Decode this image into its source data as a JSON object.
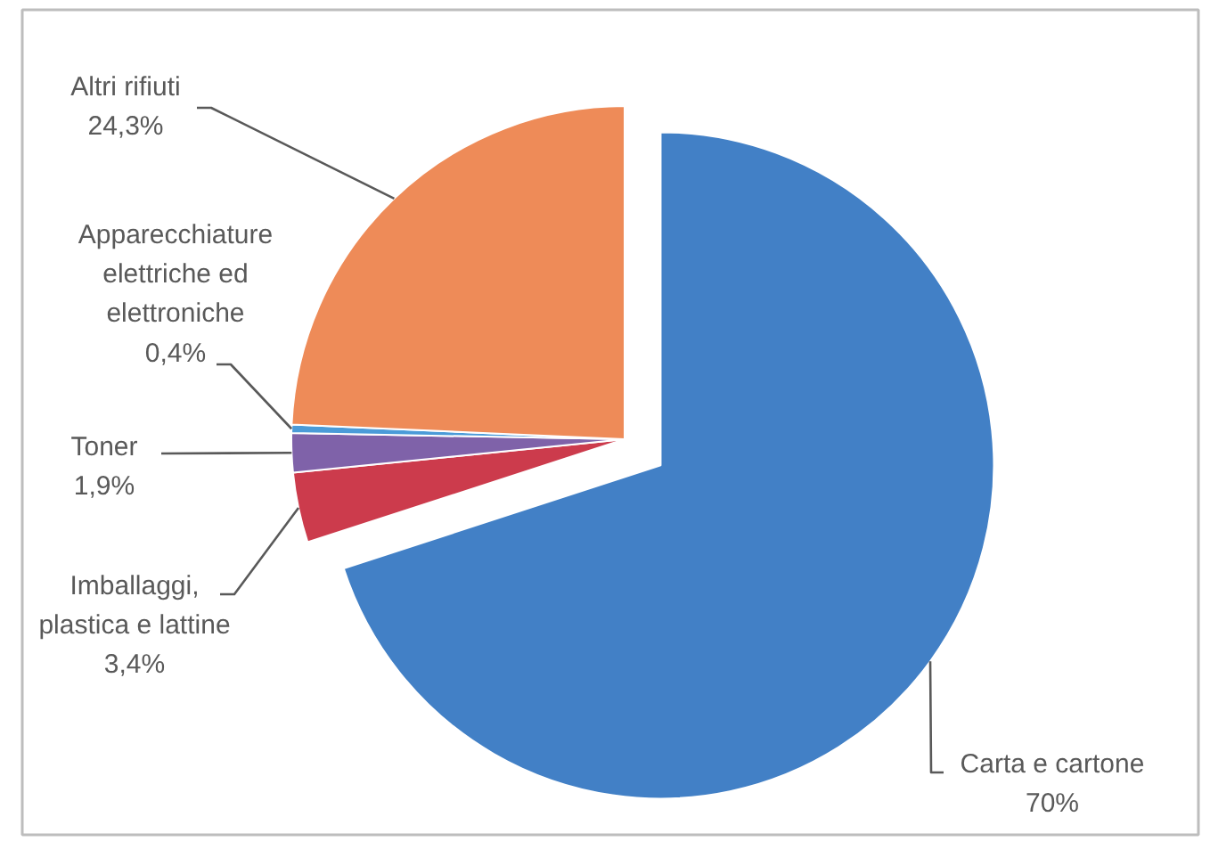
{
  "chart_data": {
    "type": "pie",
    "categories": [
      "Carta e cartone",
      "Imballaggi, plastica e lattine",
      "Toner",
      "Apparecchiature elettriche ed elettroniche",
      "Altri rifiuti"
    ],
    "values": [
      70,
      3.4,
      1.9,
      0.4,
      24.3
    ],
    "colors": [
      "#4280c6",
      "#cc3b4c",
      "#7f62a9",
      "#4b9bd8",
      "#ee8b58"
    ],
    "value_labels": [
      "70%",
      "3,4%",
      "1,9%",
      "0,4%",
      "24,3%"
    ]
  }
}
